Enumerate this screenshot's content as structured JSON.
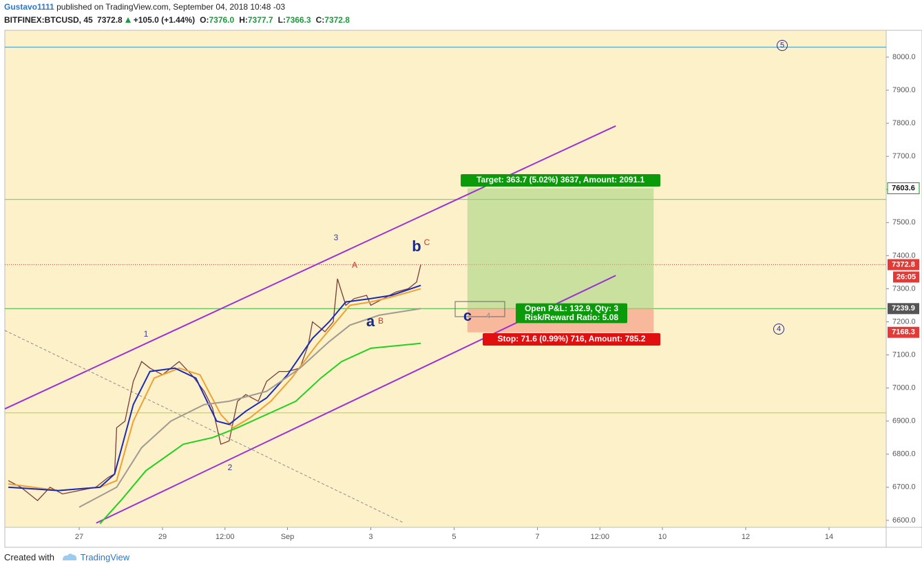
{
  "chart_data": {
    "type": "line",
    "author": "Gustavo1111",
    "title": "published on TradingView.com, September 04, 2018 10:48 -03",
    "symbol": "BITFINEX:BTCUSD, 45",
    "last": "7372.8",
    "change": "+105.0 (+1.44%)",
    "ohlc": [
      {
        "key": "O:",
        "value": "7376.0"
      },
      {
        "key": "H:",
        "value": "7377.7"
      },
      {
        "key": "L:",
        "value": "7366.3"
      },
      {
        "key": "C:",
        "value": "7372.8"
      }
    ],
    "xlim": [
      25.215,
      46.372
    ],
    "xticks": [
      {
        "value": 27,
        "label": "27"
      },
      {
        "value": 29,
        "label": "29"
      },
      {
        "value": 30.5,
        "label": "12:00"
      },
      {
        "value": 32,
        "label": "Sep"
      },
      {
        "value": 34,
        "label": "3"
      },
      {
        "value": 36,
        "label": "5"
      },
      {
        "value": 38,
        "label": "7"
      },
      {
        "value": 39.5,
        "label": "12:00"
      },
      {
        "value": 41,
        "label": "10"
      },
      {
        "value": 43,
        "label": "12"
      },
      {
        "value": 45,
        "label": "14"
      }
    ],
    "ylim": [
      6579,
      8081
    ],
    "yticks": [
      {
        "value": 6600,
        "label": "6600.0"
      },
      {
        "value": 6700,
        "label": "6700.0"
      },
      {
        "value": 6800,
        "label": "6800.0"
      },
      {
        "value": 6900,
        "label": "6900.0"
      },
      {
        "value": 7000,
        "label": "7000.0"
      },
      {
        "value": 7100,
        "label": "7100.0"
      },
      {
        "value": 7200,
        "label": "7200.0"
      },
      {
        "value": 7300,
        "label": "7300.0"
      },
      {
        "value": 7400,
        "label": "7400.0"
      },
      {
        "value": 7500,
        "label": "7500.0"
      },
      {
        "value": 7600,
        "label": "7600.0"
      },
      {
        "value": 7700,
        "label": "7700.0"
      },
      {
        "value": 7800,
        "label": "7800.0"
      },
      {
        "value": 7900,
        "label": "7900.0"
      },
      {
        "value": 8000,
        "label": "8000.0"
      }
    ],
    "series": [
      {
        "color": "#7a3b3b",
        "x": [
          25.3,
          25.6,
          26.0,
          26.3,
          26.6,
          27.0,
          27.4,
          27.7,
          27.85,
          27.9,
          28.1,
          28.3,
          28.5,
          28.7,
          29.0,
          29.4,
          29.7,
          30.0,
          30.2,
          30.4,
          30.6,
          30.8,
          31.0,
          31.3,
          31.5,
          31.8,
          32.0,
          32.3,
          32.5,
          32.6,
          32.9,
          33.1,
          33.2,
          33.4,
          33.6,
          33.9,
          34.0,
          34.3,
          34.6,
          34.9,
          35.1,
          35.2
        ],
        "values": [
          6720,
          6700,
          6660,
          6700,
          6680,
          6690,
          6700,
          6730,
          6740,
          6880,
          6900,
          7020,
          7080,
          7060,
          7040,
          7080,
          7040,
          6990,
          6940,
          6830,
          6840,
          6960,
          6980,
          6960,
          7020,
          7050,
          7050,
          7060,
          7130,
          7200,
          7170,
          7200,
          7330,
          7250,
          7270,
          7280,
          7250,
          7270,
          7290,
          7300,
          7320,
          7372.8
        ]
      },
      {
        "color": "#f0a030",
        "x": [
          25.3,
          26.5,
          27.5,
          27.9,
          28.3,
          28.8,
          29.4,
          29.9,
          30.4,
          30.7,
          31.1,
          31.6,
          32.1,
          32.7,
          33.1,
          33.5,
          34.0,
          34.5,
          35.2
        ],
        "values": [
          6710,
          6690,
          6700,
          6720,
          6900,
          7030,
          7060,
          7040,
          6920,
          6880,
          6910,
          6960,
          7030,
          7130,
          7190,
          7250,
          7260,
          7275,
          7300
        ]
      },
      {
        "color": "#1a2ab8",
        "x": [
          25.3,
          26.5,
          27.5,
          27.85,
          28.3,
          28.7,
          29.3,
          29.8,
          30.3,
          30.6,
          31.0,
          31.5,
          32.0,
          32.6,
          33.0,
          33.4,
          34.0,
          34.5,
          35.2
        ],
        "values": [
          6700,
          6690,
          6700,
          6740,
          6950,
          7050,
          7060,
          7030,
          6900,
          6890,
          6930,
          6970,
          7040,
          7150,
          7200,
          7260,
          7270,
          7280,
          7310
        ]
      },
      {
        "color": "#a09a90",
        "x": [
          27.0,
          27.9,
          28.5,
          29.2,
          30.0,
          30.6,
          31.5,
          32.3,
          33.0,
          33.5,
          34.2,
          35.2
        ],
        "values": [
          6640,
          6700,
          6820,
          6900,
          6950,
          6960,
          6990,
          7060,
          7140,
          7190,
          7220,
          7240
        ]
      },
      {
        "color": "#22d020",
        "x": [
          27.5,
          28.0,
          28.6,
          29.5,
          30.2,
          30.8,
          31.5,
          32.2,
          32.8,
          33.3,
          34.0,
          35.2
        ],
        "values": [
          6590,
          6660,
          6750,
          6830,
          6850,
          6880,
          6920,
          6960,
          7030,
          7080,
          7120,
          7135
        ]
      }
    ],
    "hlines": [
      {
        "value": 8030,
        "color": "#5aa8c8"
      },
      {
        "value": 7570,
        "color": "#7fd08a"
      },
      {
        "value": 7239.9,
        "color": "#4cbf4c"
      },
      {
        "value": 6925,
        "color": "#b8d850"
      }
    ],
    "last_line": {
      "value": 7372.8,
      "color": "#d03030"
    },
    "trendlines": [
      {
        "x": [
          25.215,
          39.88
        ],
        "values": [
          6937,
          7792
        ],
        "color": "#9b30d8"
      },
      {
        "x": [
          27.41,
          39.88
        ],
        "values": [
          6592,
          7340
        ],
        "color": "#9b30d8"
      },
      {
        "x": [
          25.215,
          34.8
        ],
        "values": [
          7174,
          6592
        ],
        "color": "#8a8a8a"
      }
    ],
    "position": {
      "x": [
        36.32,
        40.79
      ],
      "entry": 7239.9,
      "target": 7603.6,
      "stop": 7168.3,
      "target_label": "Target: 363.7 (5.02%) 3637, Amount: 2091.1",
      "pnl_label": "Open P&L: 132.9, Qty: 3",
      "rr_label": "Risk/Reward Ratio: 5.08",
      "stop_label": "Stop: 71.6 (0.99%) 716, Amount: 785.2"
    },
    "price_tags": [
      {
        "value": 7603.6,
        "label": "7603.6",
        "color": "#ffffff",
        "text_color": "#111111"
      },
      {
        "value": 7372.8,
        "label": "7372.8",
        "color": "#e53935",
        "text_color": "#ffffff"
      },
      {
        "value": 7239.9,
        "label": "7239.9",
        "color": "#555555",
        "text_color": "#ffffff"
      },
      {
        "value": 7168.3,
        "label": "7168.3",
        "color": "#e53935",
        "text_color": "#ffffff"
      }
    ],
    "countdown": "26:05",
    "annotations": [
      {
        "text": "3",
        "color": "#3a3aa0"
      },
      {
        "text": "A",
        "color": "#c0392b"
      },
      {
        "text": "b",
        "color": "#1a2a8a"
      },
      {
        "text": "C",
        "color": "#c0392b"
      },
      {
        "text": "1",
        "color": "#3a3aa0"
      },
      {
        "text": "2",
        "color": "#3a3aa0"
      },
      {
        "text": "a",
        "color": "#1a2a8a"
      },
      {
        "text": "B",
        "color": "#c0392b"
      },
      {
        "text": "c",
        "color": "#1a2a8a"
      },
      {
        "text": "4",
        "color": "#888888"
      },
      {
        "text": "5",
        "color": "#2a2a8a"
      },
      {
        "text": "4",
        "color": "#2a2a8a"
      }
    ],
    "footer": {
      "created": "Created with",
      "brand": "TradingView"
    }
  }
}
